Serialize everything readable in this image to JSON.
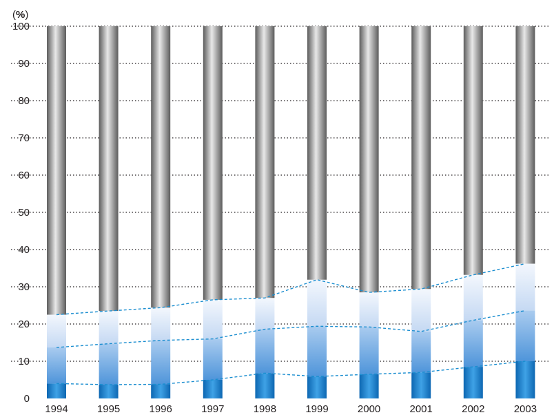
{
  "chart_data": {
    "type": "bar",
    "stacked": true,
    "ylabel_prefix": "(",
    "ylabel_unit": "%",
    "ylabel_suffix": ")",
    "ylim": [
      0,
      100
    ],
    "yticks": [
      0,
      10,
      20,
      30,
      40,
      50,
      60,
      70,
      80,
      90,
      100
    ],
    "grid": "dotted horizontal",
    "categories": [
      "1994",
      "1995",
      "1996",
      "1997",
      "1998",
      "1999",
      "2000",
      "2001",
      "2002",
      "2003"
    ],
    "highlight_category": "2003",
    "highlight_color": "#1b8ed0",
    "series": [
      {
        "values": [
          4,
          3.7,
          3.8,
          5,
          6.8,
          5.9,
          6.5,
          7,
          8.5,
          10
        ]
      },
      {
        "values": [
          9.7,
          11,
          11.8,
          11,
          11.8,
          13.5,
          12.7,
          11,
          12.5,
          13.6
        ]
      },
      {
        "values": [
          8.8,
          8.8,
          8.8,
          10.5,
          8.4,
          12.5,
          9.3,
          11.4,
          12.2,
          12.6
        ]
      },
      {
        "values": [
          77.5,
          76.5,
          75.6,
          73.5,
          73,
          68.1,
          71.5,
          70.6,
          66.8,
          63.8
        ]
      }
    ],
    "cumulative_lines": [
      [
        4,
        3.7,
        3.8,
        5,
        6.8,
        5.9,
        6.5,
        7,
        8.5,
        10
      ],
      [
        13.7,
        14.7,
        15.6,
        16,
        18.6,
        19.4,
        19.2,
        18,
        21,
        23.6
      ],
      [
        22.5,
        23.5,
        24.4,
        26.5,
        27,
        31.9,
        28.5,
        29.4,
        33.2,
        36.2
      ]
    ],
    "colors": {
      "seg1": "#1a7fc8",
      "seg2": "#5aa0dd",
      "seg3": "#d5e4f7",
      "seg4": "#8c8c8c",
      "dashed_line": "#1b8ed0",
      "grid": "#231f20"
    }
  }
}
